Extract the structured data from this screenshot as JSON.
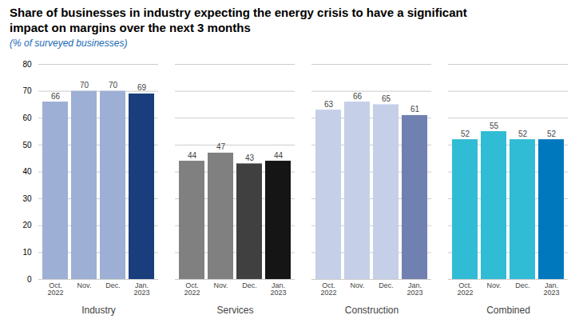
{
  "chart_data": {
    "type": "bar",
    "title": [
      "Share of businesses in industry expecting the energy crisis to have a significant",
      "impact on margins over the next 3 months"
    ],
    "subtitle": "(% of surveyed businesses)",
    "categories": [
      "Industry",
      "Services",
      "Construction",
      "Combined"
    ],
    "series": [
      {
        "name": "Oct. 2022",
        "values": [
          66,
          44,
          63,
          52
        ],
        "colors": [
          "#9dafd4",
          "#808080",
          "#c5cfe8",
          "#30bcd4"
        ]
      },
      {
        "name": "Nov.",
        "values": [
          70,
          47,
          66,
          55
        ],
        "colors": [
          "#9dafd4",
          "#808080",
          "#c5cfe8",
          "#30bcd4"
        ]
      },
      {
        "name": "Dec.",
        "values": [
          70,
          43,
          65,
          52
        ],
        "colors": [
          "#9dafd4",
          "#404040",
          "#c5cfe8",
          "#30bcd4"
        ]
      },
      {
        "name": "Jan. 2023",
        "values": [
          69,
          44,
          61,
          52
        ],
        "colors": [
          "#1a3d7c",
          "#151515",
          "#7080b0",
          "#0078be"
        ]
      }
    ],
    "ylim": [
      0,
      80
    ],
    "yticks": [
      0,
      10,
      20,
      30,
      40,
      50,
      60,
      70,
      80
    ],
    "grid": true,
    "data_labels": true
  }
}
